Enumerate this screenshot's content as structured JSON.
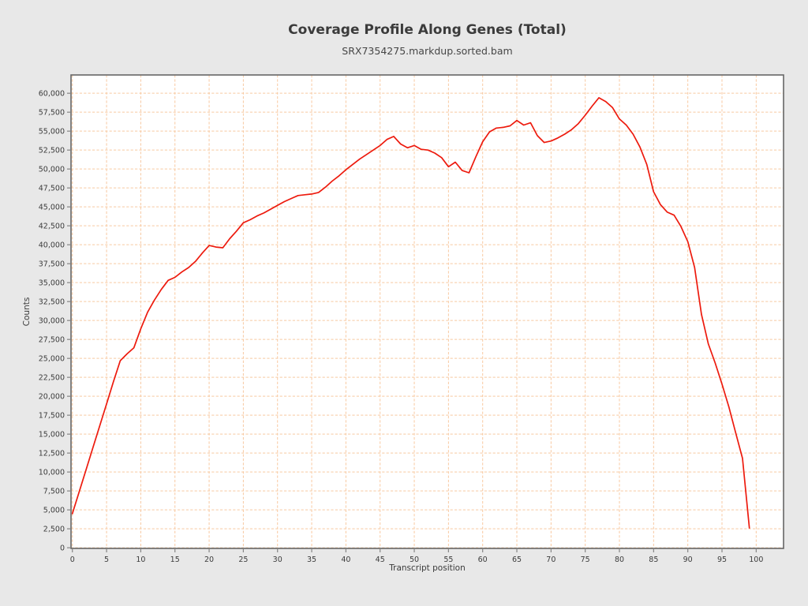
{
  "chart_data": {
    "type": "line",
    "title": "Coverage Profile Along Genes (Total)",
    "subtitle": "SRX7354275.markdup.sorted.bam",
    "xlabel": "Transcript position",
    "ylabel": "Counts",
    "grid": true,
    "legend_position": "none",
    "xlim": [
      -0.2,
      104.0
    ],
    "ylim": [
      -85,
      62415
    ],
    "x_ticks": [
      0,
      5,
      10,
      15,
      20,
      25,
      30,
      35,
      40,
      45,
      50,
      55,
      60,
      65,
      70,
      75,
      80,
      85,
      90,
      95,
      100
    ],
    "x_tick_labels": [
      "0",
      "5",
      "10",
      "15",
      "20",
      "25",
      "30",
      "35",
      "40",
      "45",
      "50",
      "55",
      "60",
      "65",
      "70",
      "75",
      "80",
      "85",
      "90",
      "95",
      "100"
    ],
    "y_ticks": [
      0,
      2500,
      5000,
      7500,
      10000,
      12500,
      15000,
      17500,
      20000,
      22500,
      25000,
      27500,
      30000,
      32500,
      35000,
      37500,
      40000,
      42500,
      45000,
      47500,
      50000,
      52500,
      55000,
      57500,
      60000
    ],
    "y_tick_labels": [
      "0",
      "2,500",
      "5,000",
      "7,500",
      "10,000",
      "12,500",
      "15,000",
      "17,500",
      "20,000",
      "22,500",
      "25,000",
      "27,500",
      "30,000",
      "32,500",
      "35,000",
      "37,500",
      "40,000",
      "42,500",
      "45,000",
      "47,500",
      "50,000",
      "52,500",
      "55,000",
      "57,500",
      "60,000"
    ],
    "x": [
      0,
      1,
      2,
      3,
      4,
      5,
      6,
      7,
      8,
      9,
      10,
      11,
      12,
      13,
      14,
      15,
      16,
      17,
      18,
      19,
      20,
      21,
      22,
      23,
      24,
      25,
      26,
      27,
      28,
      29,
      30,
      31,
      32,
      33,
      34,
      35,
      36,
      37,
      38,
      39,
      40,
      41,
      42,
      43,
      44,
      45,
      46,
      47,
      48,
      49,
      50,
      51,
      52,
      53,
      54,
      55,
      56,
      57,
      58,
      59,
      60,
      61,
      62,
      63,
      64,
      65,
      66,
      67,
      68,
      69,
      70,
      71,
      72,
      73,
      74,
      75,
      76,
      77,
      78,
      79,
      80,
      81,
      82,
      83,
      84,
      85,
      86,
      87,
      88,
      89,
      90,
      91,
      92,
      93,
      94,
      95,
      96,
      97,
      98,
      99
    ],
    "series": [
      {
        "name": "SRX7354275.markdup.sorted.bam",
        "color": "#ed1a0d",
        "values": [
          4500,
          7400,
          10300,
          13200,
          16100,
          19000,
          21900,
          24700,
          25600,
          26400,
          28900,
          31100,
          32700,
          34100,
          35300,
          35700,
          36400,
          37000,
          37800,
          38900,
          39900,
          39700,
          39600,
          40800,
          41800,
          42900,
          43300,
          43800,
          44200,
          44700,
          45200,
          45700,
          46100,
          46500,
          46600,
          46700,
          46900,
          47600,
          48400,
          49100,
          49900,
          50600,
          51300,
          51900,
          52500,
          53100,
          53900,
          54300,
          53300,
          52800,
          53100,
          52600,
          52500,
          52100,
          51500,
          50300,
          50900,
          49800,
          49500,
          51600,
          53600,
          54900,
          55400,
          55500,
          55700,
          56400,
          55800,
          56100,
          54400,
          53500,
          53700,
          54100,
          54600,
          55200,
          56000,
          57100,
          58300,
          59400,
          58900,
          58100,
          56600,
          55800,
          54600,
          52900,
          50600,
          47000,
          45300,
          44300,
          43900,
          42400,
          40400,
          37000,
          30800,
          26900,
          24400,
          21600,
          18600,
          15200,
          11800,
          2600
        ]
      }
    ],
    "colors": {
      "background": "#e8e8e8",
      "plot_background": "#ffffff",
      "grid": "#f8c9a1",
      "border": "#666666",
      "tick": "#858585",
      "tick_text": "#3c3c3c"
    }
  }
}
